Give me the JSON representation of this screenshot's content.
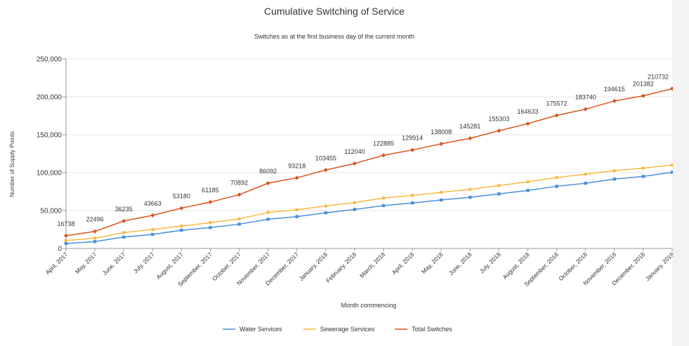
{
  "chart_data": {
    "type": "line",
    "title": "Cumulative Switching of Service",
    "subtitle": "Switches as at the first business day of the current month",
    "xlabel": "Month commencing",
    "ylabel": "Number of Supply Points",
    "ylim": [
      0,
      250000
    ],
    "yticks": [
      0,
      50000,
      100000,
      150000,
      200000,
      250000
    ],
    "ytick_labels": [
      "0",
      "50,000",
      "100,000",
      "150,000",
      "200,000",
      "250,000"
    ],
    "grid": "horizontal",
    "legend_position": "bottom",
    "categories": [
      "April, 2017",
      "May, 2017",
      "June, 2017",
      "July, 2017",
      "August, 2017",
      "September, 2017",
      "October, 2017",
      "November, 2017",
      "December, 2017",
      "January, 2018",
      "February, 2018",
      "March, 2018",
      "April, 2018",
      "May, 2018",
      "June, 2018",
      "July, 2018",
      "August, 2018",
      "September, 2018",
      "October, 2018",
      "November, 2018",
      "December, 2018",
      "January, 2019"
    ],
    "series": [
      {
        "name": "Water Services",
        "color": "#4a90d9",
        "marker": "square",
        "values": [
          6500,
          9000,
          15000,
          18500,
          24000,
          27500,
          32000,
          38500,
          42000,
          47000,
          51500,
          56500,
          60000,
          64000,
          67500,
          72000,
          76500,
          82000,
          86000,
          91500,
          95000,
          100500
        ]
      },
      {
        "name": "Sewerage Services",
        "color": "#f5b942",
        "marker": "circle",
        "values": [
          10500,
          13500,
          21000,
          25000,
          29500,
          34000,
          39000,
          47500,
          51000,
          56000,
          60500,
          66500,
          70000,
          74000,
          78000,
          83000,
          88000,
          93500,
          98000,
          102500,
          106000,
          110000
        ]
      },
      {
        "name": "Total Switches",
        "color": "#d9531e",
        "marker": "diamond",
        "values": [
          16738,
          22496,
          36235,
          43663,
          53180,
          61185,
          70892,
          86092,
          93218,
          103455,
          112040,
          122885,
          129914,
          138008,
          145281,
          155303,
          164633,
          175572,
          183740,
          194615,
          201382,
          210732
        ],
        "data_labels": [
          "16738",
          "22496",
          "36235",
          "43663",
          "53180",
          "61185",
          "70892",
          "86092",
          "93218",
          "103455",
          "112040",
          "122885",
          "129914",
          "138008",
          "145281",
          "155303",
          "164633",
          "175572",
          "183740",
          "194615",
          "201382",
          "210732"
        ]
      }
    ]
  }
}
